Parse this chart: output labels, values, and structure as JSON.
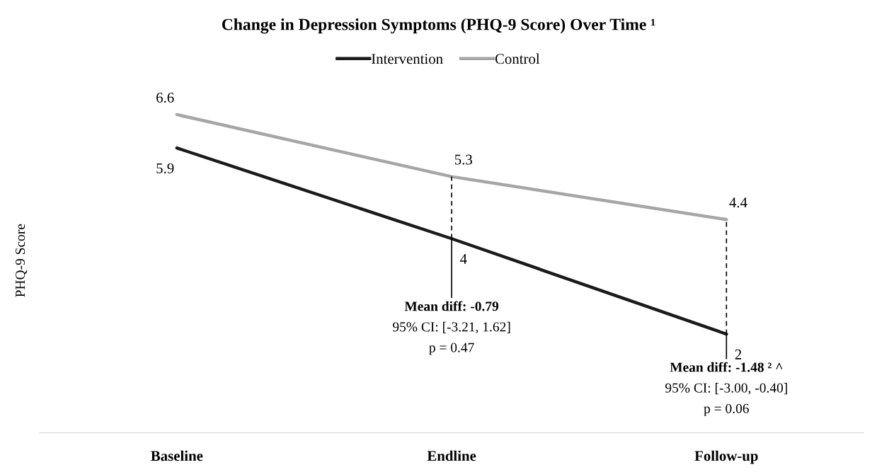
{
  "chart_data": {
    "type": "line",
    "title": "Change in Depression Symptoms (PHQ-9 Score) Over Time ¹",
    "ylabel": "PHQ-9 Score",
    "categories": [
      "Baseline",
      "Endline",
      "Follow-up"
    ],
    "series": [
      {
        "name": "Intervention",
        "color": "#1a1a1a",
        "values": [
          5.9,
          4,
          2
        ]
      },
      {
        "name": "Control",
        "color": "#a6a6a6",
        "values": [
          6.6,
          5.3,
          4.4
        ]
      }
    ],
    "data_labels": true,
    "legend": "top",
    "grid": false,
    "marker": "none",
    "line_style": "solid",
    "tick_labels": "x",
    "annotations": [
      {
        "text": "Mean diff: -0.79\n95% CI: [-3.21, 1.62]\np = 0.47",
        "x": "Endline",
        "y": 4
      },
      {
        "text": "Mean diff: -1.48 ² ^\n95% CI: [-3.00, -0.40]\np = 0.06",
        "x": "Follow-up",
        "y": 2
      }
    ]
  }
}
